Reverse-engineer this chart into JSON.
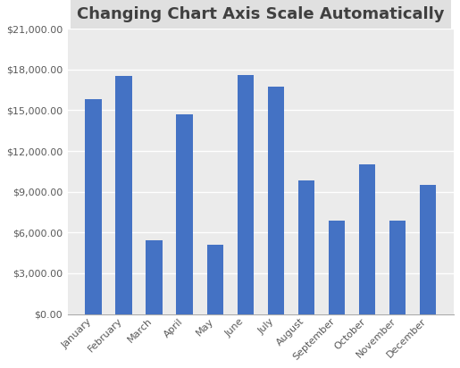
{
  "title": "Changing Chart Axis Scale Automatically",
  "categories": [
    "January",
    "February",
    "March",
    "April",
    "May",
    "June",
    "July",
    "August",
    "September",
    "October",
    "November",
    "December"
  ],
  "values": [
    15800,
    17500,
    5400,
    14700,
    5100,
    17600,
    16700,
    9800,
    6900,
    11000,
    6900,
    9500
  ],
  "bar_color": "#4472C4",
  "ylim": [
    0,
    21000
  ],
  "yticks": [
    0,
    3000,
    6000,
    9000,
    12000,
    15000,
    18000,
    21000
  ],
  "background_color": "#FFFFFF",
  "plot_area_color": "#EBEBEB",
  "grid_color": "#FFFFFF",
  "title_fontsize": 13,
  "tick_fontsize": 8,
  "tick_color": "#595959",
  "title_bg_color": "#E0E0E0",
  "title_text_color": "#404040",
  "border_color": "#AAAAAA"
}
